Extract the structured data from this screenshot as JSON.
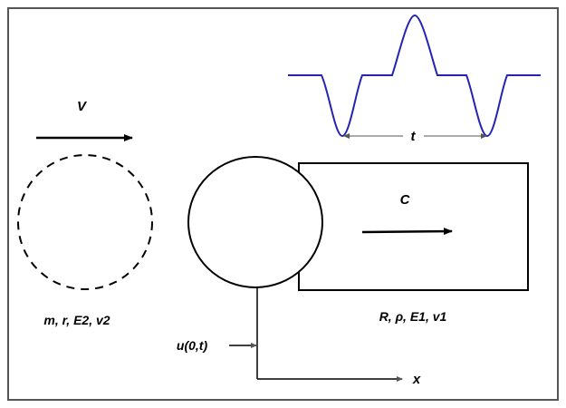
{
  "labels": {
    "projectile_velocity": "V",
    "wave_speed": "C",
    "pulse_duration": "t",
    "projectile_props": "m, r, E2, v2",
    "target_props": "R, ρ, E1, v1",
    "displacement": "u(0,t)",
    "x_axis": "x"
  },
  "colors": {
    "pulse": "#2323b4",
    "stroke": "#000000",
    "frame": "#555555",
    "background": "#ffffff"
  },
  "icons": {
    "velocity_arrow": "arrow-right-icon",
    "wave_arrow": "arrow-right-icon",
    "displacement_arrow": "arrow-right-icon",
    "x_axis_arrow": "arrow-right-icon"
  }
}
